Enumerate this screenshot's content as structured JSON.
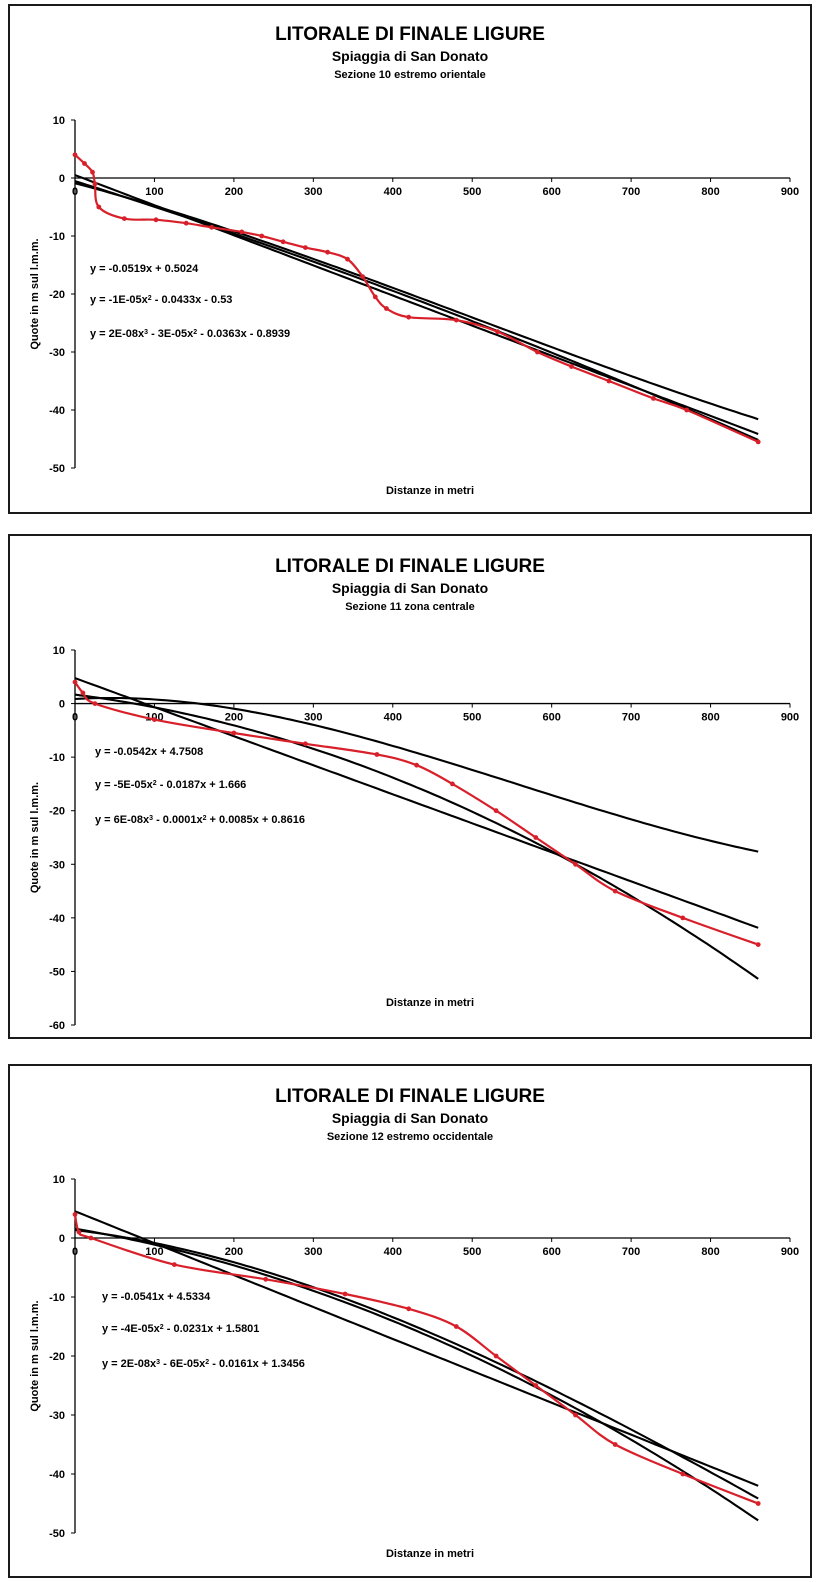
{
  "chart_data": [
    {
      "type": "line",
      "title": "LITORALE DI FINALE LIGURE",
      "subtitle": "Spiaggia di San Donato",
      "section": "Sezione 10 estremo orientale",
      "xlabel": "Distanze in metri",
      "ylabel": "Quote in m sul l.m.m.",
      "xlim": [
        0,
        900
      ],
      "ylim": [
        -50,
        10
      ],
      "xticks": [
        "0",
        "100",
        "200",
        "300",
        "400",
        "500",
        "600",
        "700",
        "800",
        "900"
      ],
      "yticks": [
        "10",
        "0",
        "-10",
        "-20",
        "-30",
        "-40",
        "-50"
      ],
      "grid": false,
      "profile_color": "#d8202a",
      "profile": {
        "x": [
          0,
          12,
          22,
          25,
          30,
          62,
          102,
          140,
          172,
          210,
          235,
          262,
          290,
          318,
          343,
          362,
          378,
          392,
          420,
          480,
          532,
          582,
          625,
          672,
          728,
          770,
          860
        ],
        "y": [
          4,
          2.5,
          1,
          -1,
          -5,
          -7,
          -7.2,
          -7.8,
          -8.5,
          -9.3,
          -10,
          -11,
          -12,
          -12.8,
          -14,
          -17,
          -20.5,
          -22.5,
          -24,
          -24.5,
          -26.5,
          -30,
          -32.5,
          -35,
          -38,
          -40,
          -45.5
        ]
      },
      "trendlines": [
        {
          "equation": "y = -0.0519x + 0.5024",
          "coef": [
            0.5024,
            -0.0519
          ]
        },
        {
          "equation": "y = -1E-05x^2 - 0.0433x - 0.53",
          "coef": [
            -0.53,
            -0.0433,
            -1e-05
          ]
        },
        {
          "equation": "y = 2E-08x^3 - 3E-05x^2 - 0.0363x - 0.8939",
          "coef": [
            -0.8939,
            -0.0363,
            -3e-05,
            2e-08
          ]
        }
      ],
      "x_max": 860
    },
    {
      "type": "line",
      "title": "LITORALE DI FINALE LIGURE",
      "subtitle": "Spiaggia di San Donato",
      "section": "Sezione 11 zona centrale",
      "xlabel": "Distanze in metri",
      "ylabel": "Quote in m sul l.m.m.",
      "xlim": [
        0,
        900
      ],
      "ylim": [
        -60,
        10
      ],
      "xticks": [
        "0",
        "100",
        "200",
        "300",
        "400",
        "500",
        "600",
        "700",
        "800",
        "900"
      ],
      "yticks": [
        "10",
        "0",
        "-10",
        "-20",
        "-30",
        "-40",
        "-50",
        "-60"
      ],
      "grid": false,
      "profile_color": "#d8202a",
      "profile": {
        "x": [
          0,
          10,
          25,
          100,
          200,
          290,
          380,
          430,
          475,
          530,
          580,
          630,
          680,
          765,
          860
        ],
        "y": [
          4,
          2,
          0,
          -3,
          -5.5,
          -7.5,
          -9.5,
          -11.5,
          -15,
          -20,
          -25,
          -30,
          -35,
          -40,
          -45
        ]
      },
      "trendlines": [
        {
          "equation": "y = -0.0542x + 4.7508",
          "coef": [
            4.7508,
            -0.0542
          ]
        },
        {
          "equation": "y = -5E-05x^2 - 0.0187x + 1.666",
          "coef": [
            1.666,
            -0.0187,
            -5e-05
          ]
        },
        {
          "equation": "y = 6E-08x^3 - 0.0001x^2 + 0.0085x + 0.8616",
          "coef": [
            0.8616,
            0.0085,
            -0.0001,
            6e-08
          ]
        }
      ],
      "x_max": 860
    },
    {
      "type": "line",
      "title": "LITORALE DI FINALE LIGURE",
      "subtitle": "Spiaggia di San Donato",
      "section": "Sezione 12 estremo occidentale",
      "xlabel": "Distanze in metri",
      "ylabel": "Quote in m sul l.m.m.",
      "xlim": [
        0,
        900
      ],
      "ylim": [
        -50,
        10
      ],
      "xticks": [
        "0",
        "100",
        "200",
        "300",
        "400",
        "500",
        "600",
        "700",
        "800",
        "900"
      ],
      "yticks": [
        "10",
        "0",
        "-10",
        "-20",
        "-30",
        "-40",
        "-50"
      ],
      "grid": false,
      "profile_color": "#d8202a",
      "profile": {
        "x": [
          0,
          5,
          20,
          125,
          240,
          340,
          420,
          480,
          530,
          580,
          630,
          680,
          765,
          860
        ],
        "y": [
          4,
          1,
          0,
          -4.5,
          -7,
          -9.5,
          -12,
          -15,
          -20,
          -25,
          -30,
          -35,
          -40,
          -45
        ]
      },
      "trendlines": [
        {
          "equation": "y = -0.0541x + 4.5334",
          "coef": [
            4.5334,
            -0.0541
          ]
        },
        {
          "equation": "y = -4E-05x^2 - 0.0231x + 1.5801",
          "coef": [
            1.5801,
            -0.0231,
            -4e-05
          ]
        },
        {
          "equation": "y = 2E-08x^3 - 6E-05x^2 - 0.0161x + 1.3456",
          "coef": [
            1.3456,
            -0.0161,
            -6e-05,
            2e-08
          ]
        }
      ],
      "x_max": 860
    }
  ]
}
